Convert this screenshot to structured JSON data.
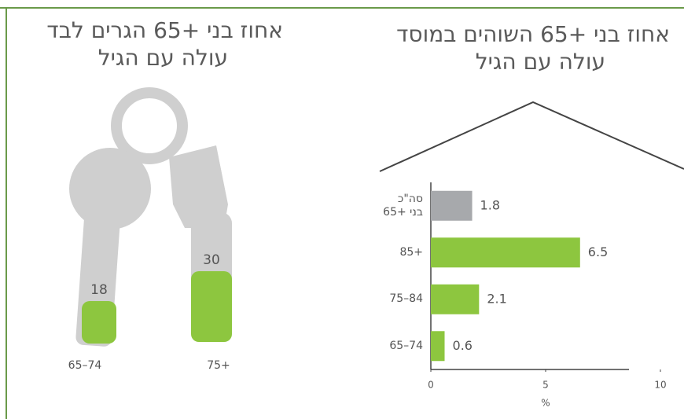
{
  "chart_data": [
    {
      "type": "pictogram",
      "title": [
        "אחוז בני +65 הגרים לבד",
        "עולה עם הגיל"
      ],
      "categories": [
        "65–74",
        "75+"
      ],
      "values": [
        18,
        30
      ],
      "color": "#8dc63f"
    },
    {
      "type": "bar",
      "title": [
        "אחוז בני +65 השוהים במוסד",
        "עולה עם הגיל"
      ],
      "categories": [
        "סה\"כ\nבני +65",
        "85+",
        "75–84",
        "65–74"
      ],
      "values": [
        1.8,
        6.5,
        2.1,
        0.6
      ],
      "colors": [
        "#a7a9ac",
        "#8dc63f",
        "#8dc63f",
        "#8dc63f"
      ],
      "xlim": [
        0,
        10
      ],
      "xticks": [
        0,
        5,
        10
      ],
      "xlabel": "%"
    }
  ]
}
